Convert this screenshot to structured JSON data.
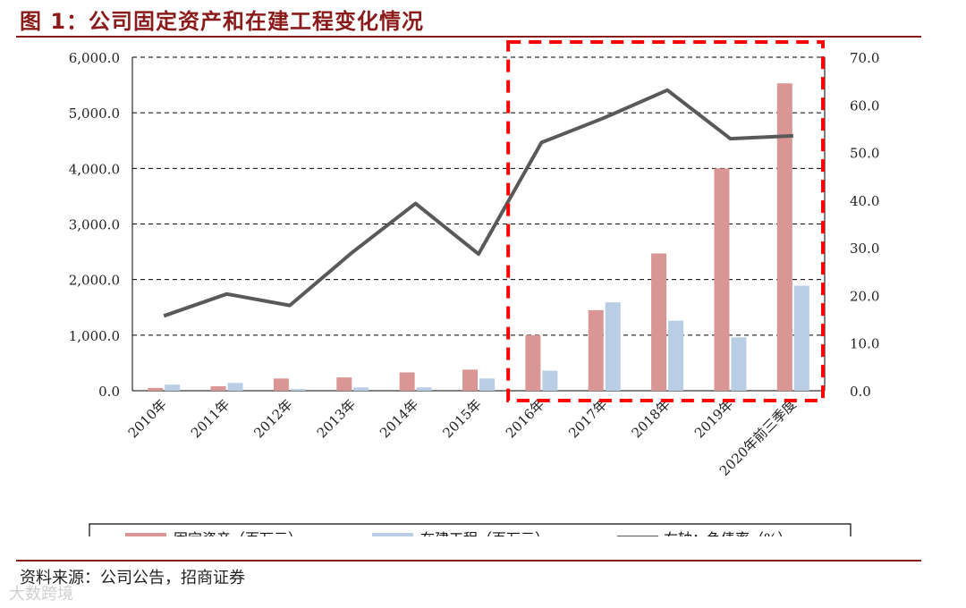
{
  "header": {
    "title": "图 1：公司固定资产和在建工程变化情况"
  },
  "footer": {
    "source": "资料来源：公司公告，招商证券",
    "watermark": "大数跨境"
  },
  "colors": {
    "fixed_assets": "#D99694",
    "construction": "#B9CDE5",
    "debt_ratio": "#595959",
    "highlight": "#FF0000",
    "title": "#8B1A1A"
  },
  "chart_data": {
    "type": "bar",
    "categories": [
      "2010年",
      "2011年",
      "2012年",
      "2013年",
      "2014年",
      "2015年",
      "2016年",
      "2017年",
      "2018年",
      "2019年",
      "2020年前三季度"
    ],
    "series": [
      {
        "name": "固定资产（百万元）",
        "kind": "bar",
        "axis": "left",
        "values": [
          50,
          80,
          220,
          240,
          330,
          380,
          1000,
          1450,
          2470,
          4000,
          5530
        ]
      },
      {
        "name": "在建工程（百万元）",
        "kind": "bar",
        "axis": "left",
        "values": [
          110,
          140,
          30,
          60,
          60,
          220,
          360,
          1590,
          1260,
          960,
          1890
        ]
      },
      {
        "name": "右轴：负债率（%）",
        "kind": "line",
        "axis": "right",
        "values": [
          15.7,
          20.3,
          17.9,
          29.1,
          39.3,
          28.7,
          52.1,
          57.3,
          63.1,
          52.9,
          53.5
        ]
      }
    ],
    "yticks_left": [
      "0.0",
      "1,000.0",
      "2,000.0",
      "3,000.0",
      "4,000.0",
      "5,000.0",
      "6,000.0"
    ],
    "yticks_right": [
      "0.0",
      "10.0",
      "20.0",
      "30.0",
      "40.0",
      "50.0",
      "60.0",
      "70.0"
    ],
    "ylim_left": [
      0,
      6000
    ],
    "ylim_right": [
      0,
      70
    ],
    "grid": true,
    "legend_position": "bottom",
    "highlight_range": [
      "2016年",
      "2020年前三季度"
    ]
  }
}
